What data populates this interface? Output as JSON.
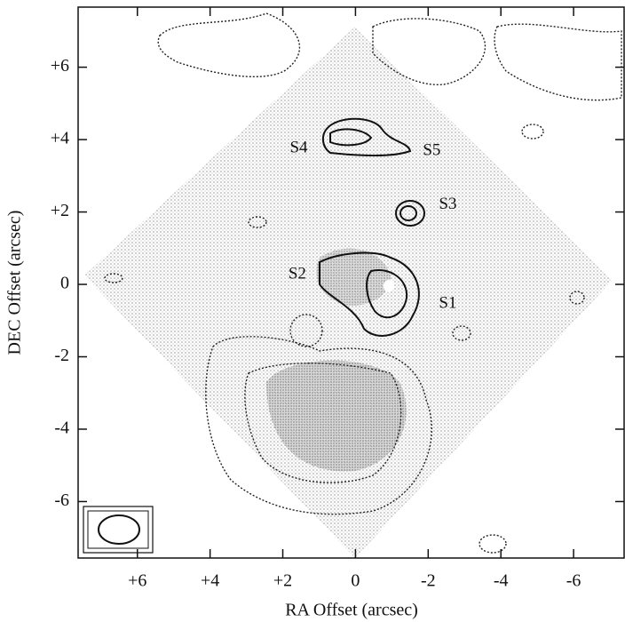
{
  "chart_data": {
    "type": "image",
    "xlabel": "RA Offset (arcsec)",
    "ylabel": "DEC Offset (arcsec)",
    "xlim": [
      7.63,
      -7.39
    ],
    "ylim": [
      -7.56,
      7.66
    ],
    "xticks": [
      {
        "value": 6,
        "label": "+6"
      },
      {
        "value": 4,
        "label": "+4"
      },
      {
        "value": 2,
        "label": "+2"
      },
      0,
      -2,
      -4,
      -6
    ],
    "yticks": [
      {
        "value": 6,
        "label": "+6"
      },
      {
        "value": 4,
        "label": "+4"
      },
      {
        "value": 2,
        "label": "+2"
      },
      0,
      -2,
      -4,
      -6
    ],
    "annotations": [
      {
        "text": "S1",
        "x": -2.54,
        "y": -0.54
      },
      {
        "text": "S2",
        "x": 1.6,
        "y": 0.27
      },
      {
        "text": "S3",
        "x": -2.54,
        "y": 2.2
      },
      {
        "text": "S4",
        "x": 1.56,
        "y": 3.75
      },
      {
        "text": "S5",
        "x": -2.1,
        "y": 3.68
      }
    ]
  }
}
